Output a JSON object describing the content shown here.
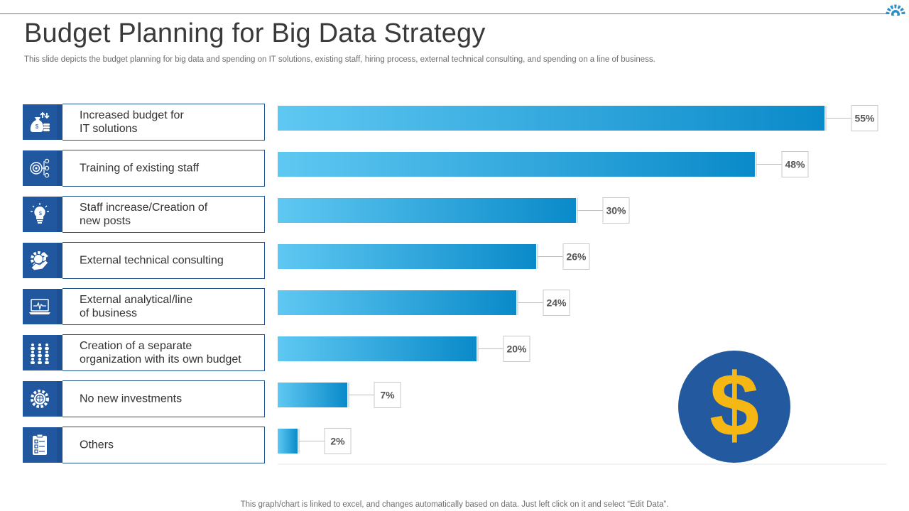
{
  "page": {
    "title": "Budget Planning for Big Data Strategy",
    "subtitle": "This slide depicts the budget planning for big data and spending on IT solutions, existing staff, hiring process, external technical consulting, and spending on a line of business.",
    "footer": "This graph/chart is linked to excel,  and changes automatically based on data. Just left click on it and select “Edit Data”."
  },
  "colors": {
    "accent": "#21579e",
    "bar_light": "#5fc8f2",
    "bar_dark": "#0a8ac9",
    "coin": "#23599e",
    "dollar": "#f4b714"
  },
  "legend": [
    {
      "label": "Increased budget for\nIT solutions",
      "icon": "money-bag-icon"
    },
    {
      "label": "Training of existing staff",
      "icon": "target-network-icon"
    },
    {
      "label": "Staff increase/Creation of\nnew posts",
      "icon": "lightbulb-icon"
    },
    {
      "label": "External technical consulting",
      "icon": "gear-hand-icon"
    },
    {
      "label": "External analytical/line\nof business",
      "icon": "laptop-pulse-icon"
    },
    {
      "label": "Creation of a separate\norganization with its own budget",
      "icon": "people-grid-icon"
    },
    {
      "label": "No new investments",
      "icon": "brain-gear-icon"
    },
    {
      "label": "Others",
      "icon": "checklist-icon"
    }
  ],
  "chart_data": {
    "type": "bar",
    "orientation": "horizontal",
    "categories": [
      "Increased budget for IT solutions",
      "Training of existing staff",
      "Staff increase/Creation of new posts",
      "External technical consulting",
      "External analytical/line of business",
      "Creation of a separate organization with its own budget",
      "No new investments",
      "Others"
    ],
    "values": [
      55,
      48,
      30,
      26,
      24,
      20,
      7,
      2
    ],
    "value_labels": [
      "55%",
      "48%",
      "30%",
      "26%",
      "24%",
      "20%",
      "7%",
      "2%"
    ],
    "unit": "%",
    "title": "",
    "xlabel": "",
    "ylabel": "",
    "xlim": [
      0,
      55
    ],
    "grid": false
  }
}
